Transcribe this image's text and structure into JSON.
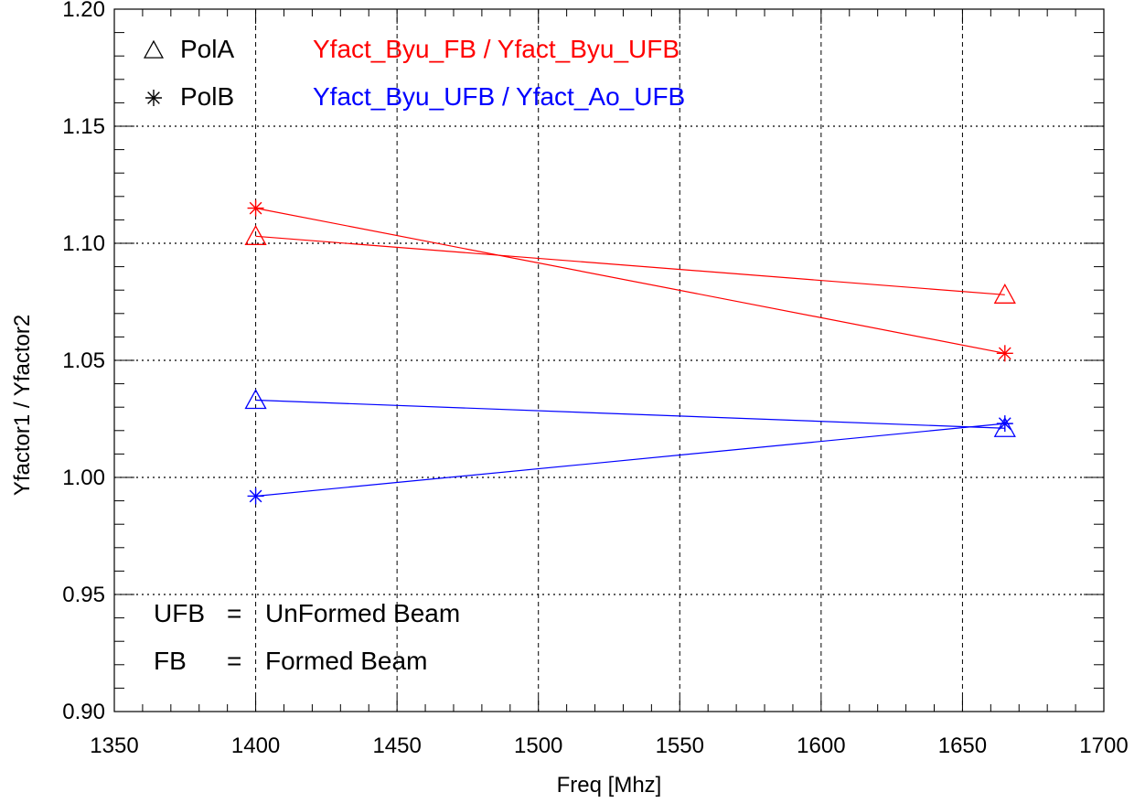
{
  "chart_data": {
    "type": "line",
    "xlabel": "Freq [Mhz]",
    "ylabel": "Yfactor1 / Yfactor2",
    "xlim": [
      1350,
      1700
    ],
    "ylim": [
      0.9,
      1.2
    ],
    "x_ticks": [
      1350,
      1400,
      1450,
      1500,
      1550,
      1600,
      1650,
      1700
    ],
    "x_tick_labels": [
      "1350",
      "1400",
      "1450",
      "1500",
      "1550",
      "1600",
      "1650",
      "1700"
    ],
    "y_ticks": [
      0.9,
      0.95,
      1.0,
      1.05,
      1.1,
      1.15,
      1.2
    ],
    "y_tick_labels": [
      "0.90",
      "0.95",
      "1.00",
      "1.05",
      "1.10",
      "1.15",
      "1.20"
    ],
    "x_grid": [
      1400,
      1450,
      1500,
      1550,
      1600,
      1650
    ],
    "y_grid": [
      0.95,
      1.0,
      1.05,
      1.1,
      1.15
    ],
    "grid": true,
    "x": [
      1400,
      1665
    ],
    "series": [
      {
        "group": "Yfact_Byu_FB / Yfact_Byu_UFB",
        "pol": "PolA",
        "marker": "triangle",
        "color": "#ff0000",
        "values": [
          1.103,
          1.078
        ]
      },
      {
        "group": "Yfact_Byu_FB / Yfact_Byu_UFB",
        "pol": "PolB",
        "marker": "asterisk",
        "color": "#ff0000",
        "values": [
          1.115,
          1.053
        ]
      },
      {
        "group": "Yfact_Byu_UFB / Yfact_Ao_UFB",
        "pol": "PolA",
        "marker": "triangle",
        "color": "#0000ff",
        "values": [
          1.033,
          1.021
        ]
      },
      {
        "group": "Yfact_Byu_UFB / Yfact_Ao_UFB",
        "pol": "PolB",
        "marker": "asterisk",
        "color": "#0000ff",
        "values": [
          0.992,
          1.023
        ]
      }
    ],
    "legend": {
      "placement": "top-left",
      "markers": [
        {
          "marker": "triangle",
          "label": "PolA"
        },
        {
          "marker": "asterisk",
          "label": "PolB"
        }
      ],
      "colors": [
        {
          "color": "#ff0000",
          "label": "Yfact_Byu_FB / Yfact_Byu_UFB"
        },
        {
          "color": "#0000ff",
          "label": "Yfact_Byu_UFB / Yfact_Ao_UFB"
        }
      ]
    },
    "annotations": [
      {
        "abbr": "UFB",
        "eq": "=",
        "text": "UnFormed Beam"
      },
      {
        "abbr": "FB",
        "eq": "=",
        "text": "Formed Beam"
      }
    ]
  }
}
